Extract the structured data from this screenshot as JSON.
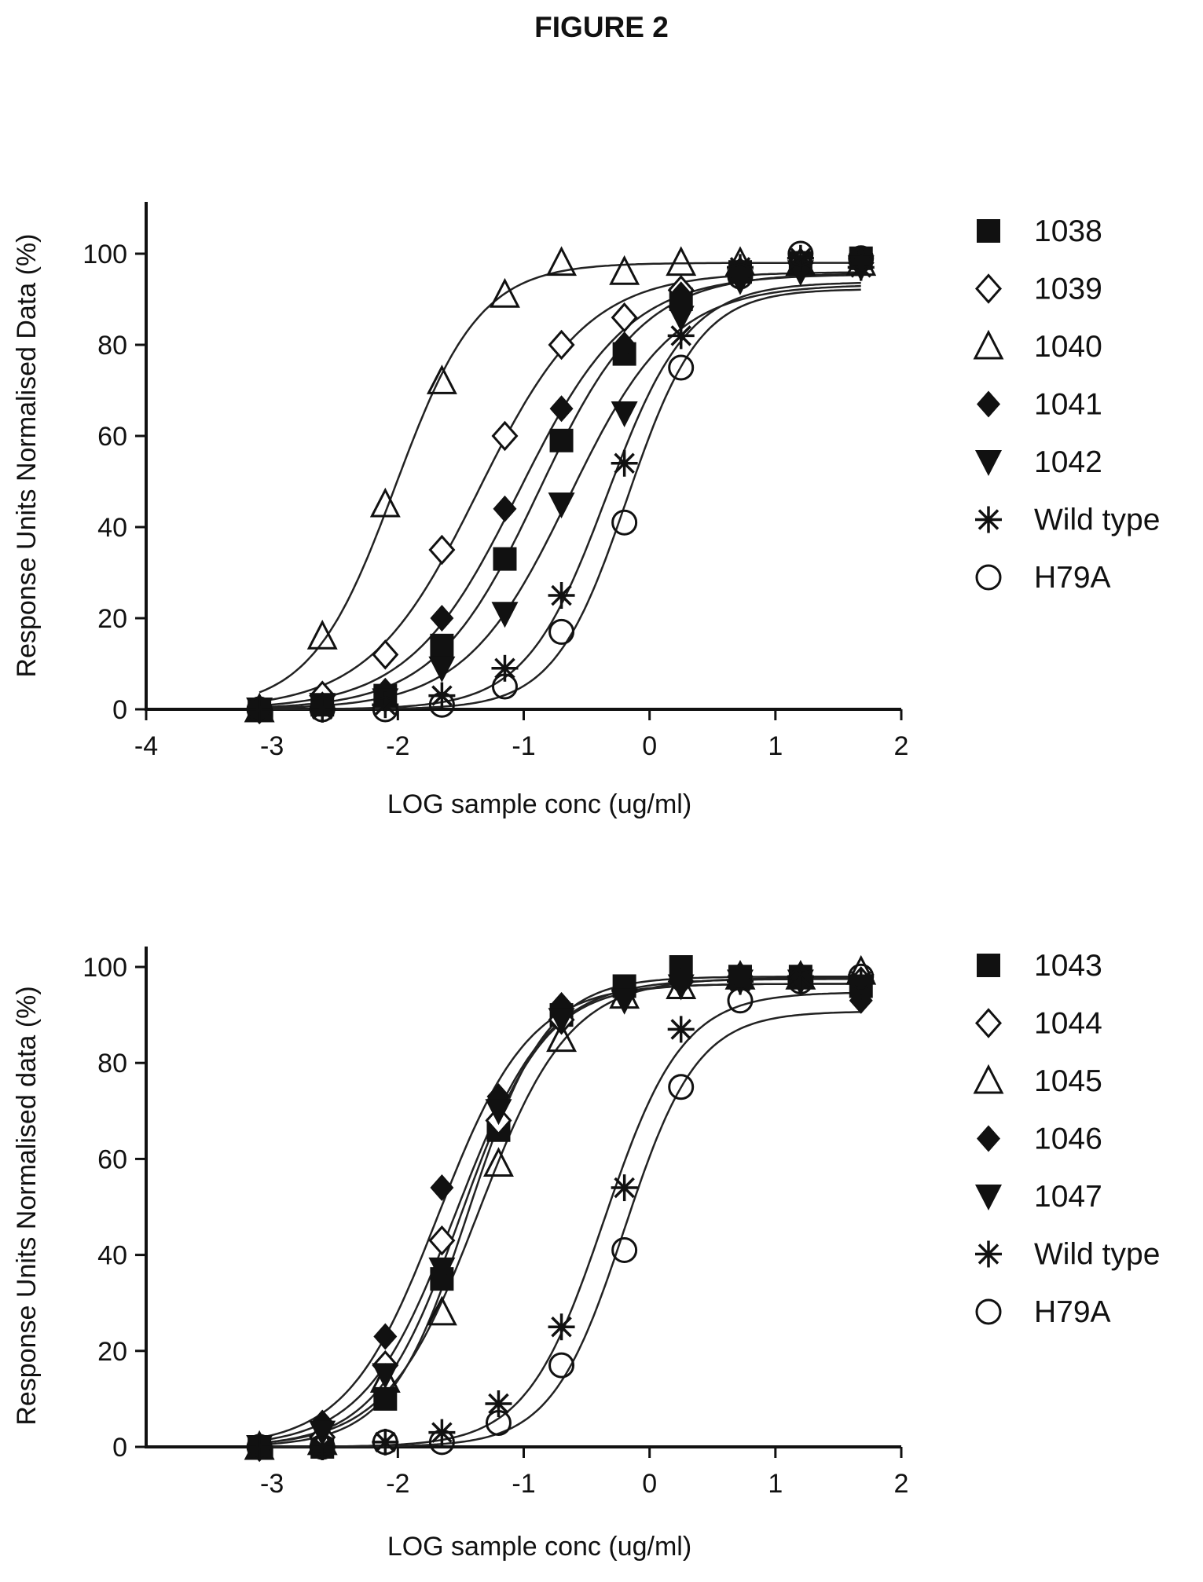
{
  "figure": {
    "title": "FIGURE 2"
  },
  "chart_data": [
    {
      "type": "scatter",
      "title": "",
      "xlabel": "LOG sample conc (ug/ml)",
      "ylabel": "Response Units Normalised Data (%)",
      "xlim": [
        -4,
        2
      ],
      "ylim": [
        0,
        110
      ],
      "xticks": [
        -4,
        -3,
        -2,
        -1,
        0,
        1,
        2
      ],
      "yticks": [
        0,
        20,
        40,
        60,
        80,
        100
      ],
      "grid": false,
      "legend": "right",
      "x": [
        -3.1,
        -2.6,
        -2.1,
        -1.65,
        -1.15,
        -0.7,
        -0.2,
        0.25,
        0.72,
        1.2,
        1.68
      ],
      "series": [
        {
          "name": "1038",
          "marker": "square-filled",
          "values": [
            0,
            1,
            3,
            14,
            33,
            59,
            78,
            90,
            96,
            98,
            99
          ]
        },
        {
          "name": "1039",
          "marker": "diamond-open",
          "values": [
            0,
            3,
            12,
            35,
            60,
            80,
            86,
            92,
            96,
            98,
            98
          ]
        },
        {
          "name": "1040",
          "marker": "triangle-open",
          "values": [
            0,
            16,
            45,
            72,
            91,
            98,
            96,
            98,
            98,
            98,
            98
          ]
        },
        {
          "name": "1041",
          "marker": "diamond-filled",
          "values": [
            0,
            1,
            4,
            20,
            44,
            66,
            80,
            91,
            96,
            97,
            98
          ]
        },
        {
          "name": "1042",
          "marker": "triangle-down-filled",
          "values": [
            0,
            1,
            2,
            9,
            21,
            45,
            65,
            86,
            94,
            96,
            97
          ]
        },
        {
          "name": "Wild type",
          "marker": "asterisk",
          "values": [
            0,
            0,
            1,
            3,
            9,
            25,
            54,
            82,
            97,
            99,
            97
          ]
        },
        {
          "name": "H79A",
          "marker": "circle-open",
          "values": [
            0,
            0,
            0,
            1,
            5,
            17,
            41,
            75,
            95,
            100,
            99
          ]
        }
      ]
    },
    {
      "type": "scatter",
      "title": "",
      "xlabel": "LOG sample conc  (ug/ml)",
      "ylabel": "Response Units Normalised data  (%)",
      "xlim": [
        -4,
        2
      ],
      "ylim": [
        0,
        105
      ],
      "xticks": [
        -3,
        -2,
        -1,
        0,
        1,
        2
      ],
      "yticks": [
        0,
        20,
        40,
        60,
        80,
        100
      ],
      "grid": false,
      "legend": "right",
      "x": [
        -3.1,
        -2.6,
        -2.1,
        -1.65,
        -1.2,
        -0.7,
        -0.2,
        0.25,
        0.72,
        1.2,
        1.68
      ],
      "series": [
        {
          "name": "1043",
          "marker": "square-filled",
          "values": [
            0,
            0,
            10,
            35,
            66,
            90,
            96,
            100,
            98,
            98,
            96
          ]
        },
        {
          "name": "1044",
          "marker": "diamond-open",
          "values": [
            0,
            2,
            17,
            43,
            68,
            89,
            95,
            97,
            98,
            98,
            97
          ]
        },
        {
          "name": "1045",
          "marker": "triangle-open",
          "values": [
            0,
            1,
            14,
            28,
            59,
            85,
            94,
            96,
            98,
            98,
            99
          ]
        },
        {
          "name": "1046",
          "marker": "diamond-filled",
          "values": [
            0,
            5,
            23,
            54,
            73,
            92,
            95,
            97,
            98,
            98,
            93
          ]
        },
        {
          "name": "1047",
          "marker": "triangle-down-filled",
          "values": [
            0,
            3,
            15,
            37,
            70,
            89,
            93,
            96,
            97,
            97,
            96
          ]
        },
        {
          "name": "Wild type",
          "marker": "asterisk",
          "values": [
            0,
            0,
            1,
            3,
            9,
            25,
            54,
            87,
            97,
            98,
            97
          ]
        },
        {
          "name": "H79A",
          "marker": "circle-open",
          "values": [
            0,
            0,
            1,
            1,
            5,
            17,
            41,
            75,
            93,
            97,
            98
          ]
        }
      ]
    }
  ]
}
